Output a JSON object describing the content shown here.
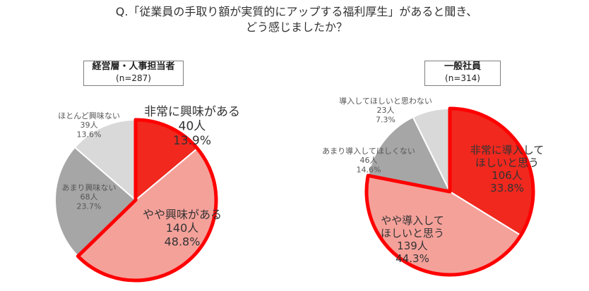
{
  "question": {
    "line1": "Q.「従業員の手取り額が実質的にアップする福利厚生」があると聞き、",
    "line2": "どう感じましたか？"
  },
  "colors": {
    "dark_red": "#f0281e",
    "pink": "#f4a19a",
    "dark_gray": "#a6a6a6",
    "light_gray": "#d9d9d9",
    "highlight_border": "#ff0000"
  },
  "chart_data": [
    {
      "type": "pie",
      "title": "経営層・人事担当者",
      "subtitle": "(n=287)",
      "slices": [
        {
          "label": "非常に興味がある",
          "count": "40人",
          "percent": "13.9%",
          "value": 13.9,
          "color": "#f0281e",
          "highlight": true
        },
        {
          "label": "やや興味がある",
          "count": "140人",
          "percent": "48.8%",
          "value": 48.8,
          "color": "#f4a19a",
          "highlight": true
        },
        {
          "label": "あまり興味ない",
          "count": "68人",
          "percent": "23.7%",
          "value": 23.7,
          "color": "#a6a6a6",
          "highlight": false
        },
        {
          "label": "ほとんど興味ない",
          "count": "39人",
          "percent": "13.6%",
          "value": 13.6,
          "color": "#d9d9d9",
          "highlight": false
        }
      ]
    },
    {
      "type": "pie",
      "title": "一般社員",
      "subtitle": "(n=314)",
      "slices": [
        {
          "label": "非常に導入して\nほしいと思う",
          "count": "106人",
          "percent": "33.8%",
          "value": 33.8,
          "color": "#f0281e",
          "highlight": true
        },
        {
          "label": "やや導入して\nほしいと思う",
          "count": "139人",
          "percent": "44.3%",
          "value": 44.3,
          "color": "#f4a19a",
          "highlight": true
        },
        {
          "label": "あまり導入してほしくない",
          "count": "46人",
          "percent": "14.6%",
          "value": 14.6,
          "color": "#a6a6a6",
          "highlight": false
        },
        {
          "label": "導入してほしいと思わない",
          "count": "23人",
          "percent": "7.3%",
          "value": 7.3,
          "color": "#d9d9d9",
          "highlight": false
        }
      ]
    }
  ]
}
